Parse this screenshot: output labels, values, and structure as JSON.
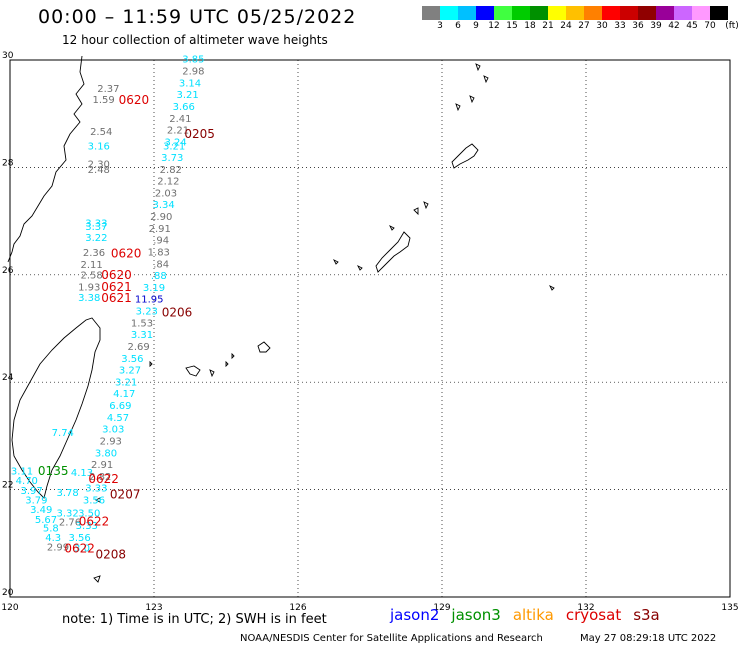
{
  "header": {
    "title": "00:00 – 11:59 UTC 05/25/2022",
    "subtitle": "12 hour collection of altimeter wave heights"
  },
  "colorbar": {
    "colors": [
      "#808080",
      "#00ffff",
      "#00c0ff",
      "#0000ff",
      "#40ff40",
      "#00cc00",
      "#009000",
      "#ffff00",
      "#ffc000",
      "#ff8000",
      "#ff0000",
      "#cc0000",
      "#900000",
      "#990099",
      "#cc66ff",
      "#ff99ff",
      "#000000"
    ],
    "labels": [
      "3",
      "6",
      "9",
      "12",
      "15",
      "18",
      "21",
      "24",
      "27",
      "30",
      "33",
      "36",
      "39",
      "42",
      "45",
      "70",
      "(ft)"
    ]
  },
  "map": {
    "lon_ticks": [
      "120",
      "123",
      "126",
      "129",
      "132",
      "135"
    ],
    "lat_ticks": [
      "30",
      "28",
      "26",
      "24",
      "22",
      "20"
    ],
    "wave_values": [
      {
        "t": "3.85",
        "c": "#00e0ff",
        "lon": 123.82,
        "lat": 29.95
      },
      {
        "t": "2.98",
        "c": "#707070",
        "lon": 123.82,
        "lat": 29.73
      },
      {
        "t": "3.14",
        "c": "#00e0ff",
        "lon": 123.75,
        "lat": 29.51
      },
      {
        "t": "3.21",
        "c": "#00e0ff",
        "lon": 123.7,
        "lat": 29.29
      },
      {
        "t": "3.66",
        "c": "#00e0ff",
        "lon": 123.62,
        "lat": 29.07
      },
      {
        "t": "2.41",
        "c": "#707070",
        "lon": 123.55,
        "lat": 28.85
      },
      {
        "t": "2.21",
        "c": "#707070",
        "lon": 123.5,
        "lat": 28.63
      },
      {
        "t": "3.24",
        "c": "#00e0ff",
        "lon": 123.45,
        "lat": 28.41
      },
      {
        "t": "3.21",
        "c": "#00e0ff",
        "lon": 123.42,
        "lat": 28.33
      },
      {
        "t": "3.73",
        "c": "#00e0ff",
        "lon": 123.38,
        "lat": 28.12
      },
      {
        "t": "2.82",
        "c": "#707070",
        "lon": 123.35,
        "lat": 27.9
      },
      {
        "t": "2.12",
        "c": "#707070",
        "lon": 123.3,
        "lat": 27.68
      },
      {
        "t": "2.03",
        "c": "#707070",
        "lon": 123.25,
        "lat": 27.46
      },
      {
        "t": "3.34",
        "c": "#00e0ff",
        "lon": 123.2,
        "lat": 27.24
      },
      {
        "t": "2.90",
        "c": "#707070",
        "lon": 123.15,
        "lat": 27.02
      },
      {
        "t": "2.91",
        "c": "#707070",
        "lon": 123.12,
        "lat": 26.8
      },
      {
        "t": ".94",
        "c": "#707070",
        "lon": 123.15,
        "lat": 26.58
      },
      {
        "t": "1.83",
        "c": "#707070",
        "lon": 123.1,
        "lat": 26.36
      },
      {
        "t": ".84",
        "c": "#707070",
        "lon": 123.15,
        "lat": 26.14
      },
      {
        "t": ".88",
        "c": "#00e0ff",
        "lon": 123.1,
        "lat": 25.92
      },
      {
        "t": "3.19",
        "c": "#00e0ff",
        "lon": 123.0,
        "lat": 25.7
      },
      {
        "t": "11.95",
        "c": "#0000cc",
        "lon": 122.9,
        "lat": 25.48
      },
      {
        "t": "3.23",
        "c": "#00e0ff",
        "lon": 122.85,
        "lat": 25.26
      },
      {
        "t": "1.53",
        "c": "#707070",
        "lon": 122.75,
        "lat": 25.04
      },
      {
        "t": "3.31",
        "c": "#00e0ff",
        "lon": 122.75,
        "lat": 24.82
      },
      {
        "t": "2.69",
        "c": "#707070",
        "lon": 122.68,
        "lat": 24.6
      },
      {
        "t": "3.56",
        "c": "#00e0ff",
        "lon": 122.55,
        "lat": 24.38
      },
      {
        "t": "3.27",
        "c": "#00e0ff",
        "lon": 122.5,
        "lat": 24.16
      },
      {
        "t": "3.21",
        "c": "#00e0ff",
        "lon": 122.42,
        "lat": 23.94
      },
      {
        "t": "4.17",
        "c": "#00e0ff",
        "lon": 122.38,
        "lat": 23.72
      },
      {
        "t": "6.69",
        "c": "#00e0ff",
        "lon": 122.3,
        "lat": 23.5
      },
      {
        "t": "4.57",
        "c": "#00e0ff",
        "lon": 122.25,
        "lat": 23.28
      },
      {
        "t": "3.03",
        "c": "#00e0ff",
        "lon": 122.15,
        "lat": 23.06
      },
      {
        "t": "7.74",
        "c": "#00e0ff",
        "lon": 121.1,
        "lat": 23.0
      },
      {
        "t": "2.93",
        "c": "#707070",
        "lon": 122.1,
        "lat": 22.84
      },
      {
        "t": "3.80",
        "c": "#00e0ff",
        "lon": 122.0,
        "lat": 22.62
      },
      {
        "t": "2.91",
        "c": "#707070",
        "lon": 121.92,
        "lat": 22.4
      },
      {
        "t": "4.13",
        "c": "#00e0ff",
        "lon": 121.5,
        "lat": 22.25
      },
      {
        "t": "2.82",
        "c": "#707070",
        "lon": 121.88,
        "lat": 22.18
      },
      {
        "t": "3.33",
        "c": "#00e0ff",
        "lon": 121.8,
        "lat": 21.96
      },
      {
        "t": "3.56",
        "c": "#00e0ff",
        "lon": 121.75,
        "lat": 21.74
      },
      {
        "t": "3.11",
        "c": "#00e0ff",
        "lon": 120.25,
        "lat": 22.28
      },
      {
        "t": "4.70",
        "c": "#00e0ff",
        "lon": 120.35,
        "lat": 22.1
      },
      {
        "t": "3.97",
        "c": "#00e0ff",
        "lon": 120.45,
        "lat": 21.92
      },
      {
        "t": "3.78",
        "c": "#00e0ff",
        "lon": 121.2,
        "lat": 21.88
      },
      {
        "t": "3.79",
        "c": "#00e0ff",
        "lon": 120.55,
        "lat": 21.74
      },
      {
        "t": "3.49",
        "c": "#00e0ff",
        "lon": 120.65,
        "lat": 21.56
      },
      {
        "t": "3.32",
        "c": "#00e0ff",
        "lon": 121.2,
        "lat": 21.5
      },
      {
        "t": "3.50",
        "c": "#00e0ff",
        "lon": 121.65,
        "lat": 21.5
      },
      {
        "t": "5.67",
        "c": "#00e0ff",
        "lon": 120.75,
        "lat": 21.38
      },
      {
        "t": "2.76",
        "c": "#707070",
        "lon": 121.25,
        "lat": 21.33
      },
      {
        "t": "3.33",
        "c": "#00e0ff",
        "lon": 121.6,
        "lat": 21.27
      },
      {
        "t": "5.8",
        "c": "#00e0ff",
        "lon": 120.85,
        "lat": 21.22
      },
      {
        "t": "4.3",
        "c": "#00e0ff",
        "lon": 120.9,
        "lat": 21.04
      },
      {
        "t": "3.56",
        "c": "#00e0ff",
        "lon": 121.45,
        "lat": 21.04
      },
      {
        "t": "2.99",
        "c": "#707070",
        "lon": 121.0,
        "lat": 20.87
      },
      {
        "t": "3.0",
        "c": "#00e0ff",
        "lon": 121.5,
        "lat": 20.85
      },
      {
        "t": "3.16",
        "c": "#00e0ff",
        "lon": 121.85,
        "lat": 28.33
      },
      {
        "t": "2.30",
        "c": "#707070",
        "lon": 121.85,
        "lat": 28.0
      },
      {
        "t": "2.48",
        "c": "#707070",
        "lon": 121.85,
        "lat": 27.9
      },
      {
        "t": "2.54",
        "c": "#707070",
        "lon": 121.9,
        "lat": 28.6
      },
      {
        "t": "1.59",
        "c": "#707070",
        "lon": 121.95,
        "lat": 29.2
      },
      {
        "t": "2.37",
        "c": "#707070",
        "lon": 122.05,
        "lat": 29.4
      },
      {
        "t": "3.33",
        "c": "#00e0ff",
        "lon": 121.8,
        "lat": 26.9
      },
      {
        "t": "3.37",
        "c": "#00e0ff",
        "lon": 121.8,
        "lat": 26.83
      },
      {
        "t": "3.22",
        "c": "#00e0ff",
        "lon": 121.8,
        "lat": 26.63
      },
      {
        "t": "2.36",
        "c": "#707070",
        "lon": 121.75,
        "lat": 26.35
      },
      {
        "t": "2.11",
        "c": "#707070",
        "lon": 121.7,
        "lat": 26.13
      },
      {
        "t": "2.58",
        "c": "#707070",
        "lon": 121.7,
        "lat": 25.93
      },
      {
        "t": "1.93",
        "c": "#707070",
        "lon": 121.65,
        "lat": 25.71
      },
      {
        "t": "3.38",
        "c": "#00e0ff",
        "lon": 121.65,
        "lat": 25.51
      }
    ],
    "time_labels": [
      {
        "t": "0620",
        "c": "#dd0000",
        "lon": 122.58,
        "lat": 29.18
      },
      {
        "t": "0205",
        "c": "#880000",
        "lon": 123.95,
        "lat": 28.55
      },
      {
        "t": "0620",
        "c": "#dd0000",
        "lon": 122.42,
        "lat": 26.32
      },
      {
        "t": "0620",
        "c": "#dd0000",
        "lon": 122.22,
        "lat": 25.92
      },
      {
        "t": "0621",
        "c": "#dd0000",
        "lon": 122.22,
        "lat": 25.7
      },
      {
        "t": "0621",
        "c": "#dd0000",
        "lon": 122.22,
        "lat": 25.49
      },
      {
        "t": "0206",
        "c": "#880000",
        "lon": 123.48,
        "lat": 25.22
      },
      {
        "t": "0135",
        "c": "#009000",
        "lon": 120.9,
        "lat": 22.27
      },
      {
        "t": "0622",
        "c": "#dd0000",
        "lon": 121.95,
        "lat": 22.12
      },
      {
        "t": "0207",
        "c": "#880000",
        "lon": 122.4,
        "lat": 21.83
      },
      {
        "t": "0622",
        "c": "#dd0000",
        "lon": 121.75,
        "lat": 21.33
      },
      {
        "t": "0622",
        "c": "#dd0000",
        "lon": 121.45,
        "lat": 20.83
      },
      {
        "t": "0208",
        "c": "#880000",
        "lon": 122.1,
        "lat": 20.72
      }
    ]
  },
  "footer": {
    "note": "note: 1) Time is in UTC; 2) SWH is in feet",
    "legend": [
      {
        "t": "jason2",
        "c": "#0000ff"
      },
      {
        "t": "jason3",
        "c": "#009000"
      },
      {
        "t": "altika",
        "c": "#ff9900"
      },
      {
        "t": "cryosat",
        "c": "#dd0000"
      },
      {
        "t": "s3a",
        "c": "#880000"
      }
    ],
    "credit": "NOAA/NESDIS Center for Satellite Applications and Research",
    "timestamp": "May 27 08:29:18 UTC 2022"
  }
}
